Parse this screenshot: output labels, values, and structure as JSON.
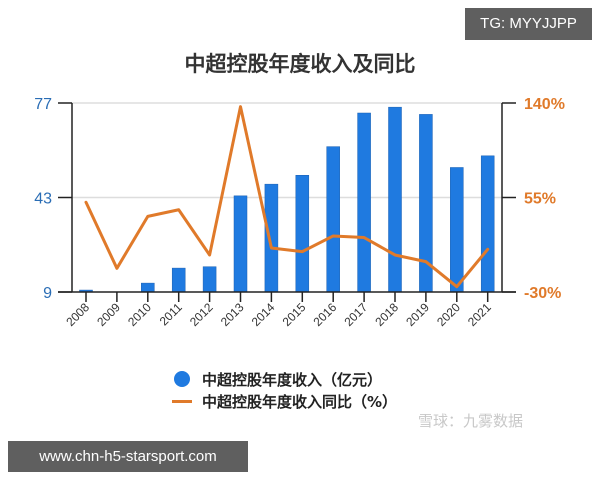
{
  "overlay": {
    "top_badge": "TG: MYYJJPP",
    "bottom_badge": "www.chn-h5-starsport.com",
    "watermark": "雪球：九雾数据"
  },
  "chart_data": {
    "type": "bar",
    "title": "中超控股年度收入及同比",
    "xlabel": "",
    "ylabel": "",
    "categories": [
      "2008",
      "2009",
      "2010",
      "2011",
      "2012",
      "2013",
      "2014",
      "2015",
      "2016",
      "2017",
      "2018",
      "2019",
      "2020",
      "2021"
    ],
    "series": [
      {
        "name": "中超控股年度收入（亿元）",
        "type": "bar",
        "axis": "left",
        "color": "#1f7ae0",
        "values": [
          9.7,
          null,
          12.2,
          17.6,
          18.1,
          43.6,
          47.8,
          51.0,
          61.3,
          73.4,
          75.5,
          72.9,
          53.8,
          58.0
        ]
      },
      {
        "name": "中超控股年度收入同比（%）",
        "type": "line",
        "axis": "right",
        "color": "#e07a2a",
        "values": [
          50.7,
          -8.7,
          38.0,
          44.0,
          3.3,
          136.7,
          9.6,
          6.3,
          20.4,
          19.0,
          3.3,
          -2.7,
          -25.2,
          8.4
        ]
      }
    ],
    "left_axis": {
      "ticks": [
        "77",
        "43",
        "9"
      ],
      "ylim": [
        9,
        77
      ],
      "color": "#2a6db5"
    },
    "right_axis": {
      "ticks": [
        "140%",
        "55%",
        "-30%"
      ],
      "ylim": [
        -30,
        140
      ],
      "color": "#e07a2a"
    },
    "grid": true,
    "legend_position": "bottom"
  },
  "legend": {
    "bar_label": "中超控股年度收入（亿元）",
    "line_label": "中超控股年度收入同比（%）"
  }
}
